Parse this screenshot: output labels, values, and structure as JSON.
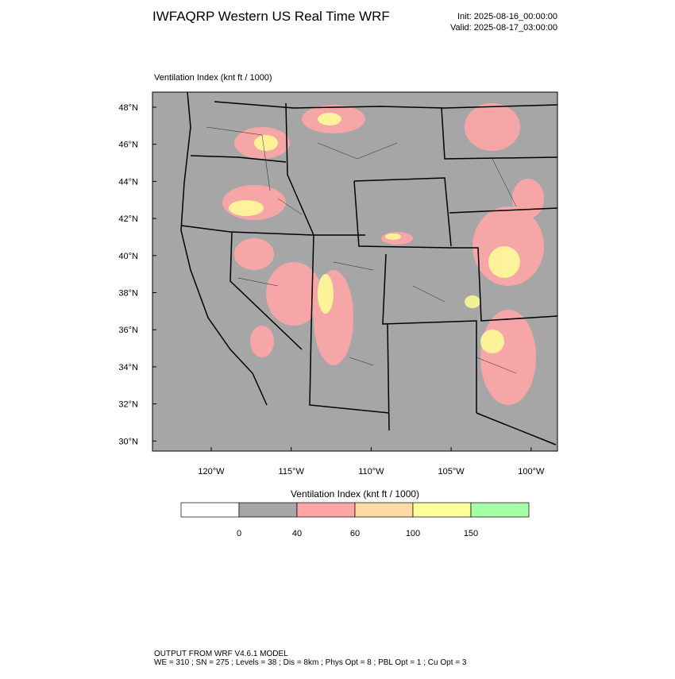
{
  "header": {
    "title": "IWFAQRP Western US Real Time WRF",
    "init": "Init: 2025-08-16_00:00:00",
    "valid": "Valid: 2025-08-17_03:00:00"
  },
  "map": {
    "field_label": "Ventilation Index   (knt ft / 1000)",
    "lat_labels": [
      "48°N",
      "46°N",
      "44°N",
      "42°N",
      "40°N",
      "38°N",
      "36°N",
      "34°N",
      "32°N",
      "30°N"
    ],
    "lon_labels": [
      "120°W",
      "115°W",
      "110°W",
      "105°W",
      "100°W"
    ]
  },
  "colorbar": {
    "title": "Ventilation Index   (knt ft / 1000)",
    "labels": [
      "0",
      "40",
      "60",
      "100",
      "150"
    ],
    "colors": [
      "#ffffff",
      "#a6a6a6",
      "#ffa6a6",
      "#ffd9a6",
      "#ffff99",
      "#a6ffa6"
    ]
  },
  "footer": {
    "line1": "OUTPUT FROM WRF V4.6.1 MODEL",
    "line2": "WE = 310 ; SN = 275 ; Levels = 38 ; Dis = 8km ; Phys Opt = 8 ; PBL Opt = 1 ; Cu Opt = 3"
  }
}
